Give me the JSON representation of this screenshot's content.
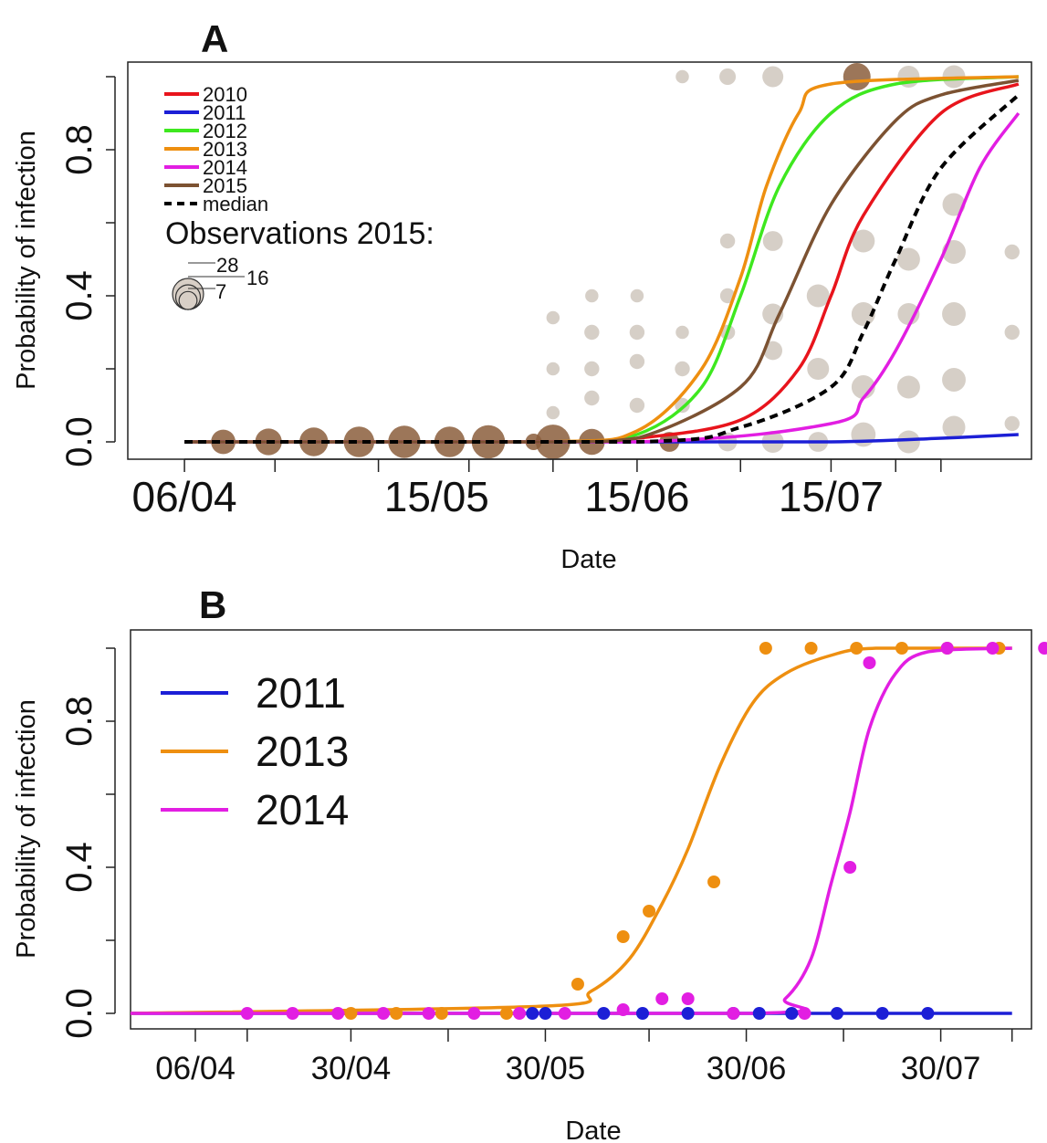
{
  "colors": {
    "2010": "#e8141c",
    "2011": "#1c1fd6",
    "2012": "#3ee81f",
    "2013": "#ee8f10",
    "2014": "#e21ee2",
    "2015": "#7c5232",
    "median": "#000000",
    "obs_other": "#c8bfb4",
    "obs_2015": "#8b5e3c"
  },
  "chart_data": [
    {
      "panel": "A",
      "type": "line",
      "xlabel": "Date",
      "ylabel": "Probability of infection",
      "x_unit": "date (day/month)",
      "xlim": [
        "24/03",
        "15/08"
      ],
      "ylim": [
        0,
        1
      ],
      "x_tick_labels": [
        "06/04",
        "15/05",
        "15/06",
        "15/07"
      ],
      "x_ticks_all": [
        "06/04",
        "20/04",
        "06/05",
        "20/05",
        "02/06",
        "15/06",
        "01/07",
        "15/07",
        "25/07",
        "01/08"
      ],
      "y_tick_labels": [
        "0.0",
        "0.4",
        "0.8"
      ],
      "legend_position": "top-left",
      "series": [
        {
          "name": "2010",
          "color_key": "2010",
          "x": [
            "06/04",
            "01/06",
            "15/06",
            "01/07",
            "10/07",
            "15/07",
            "20/07",
            "01/08",
            "13/08"
          ],
          "y": [
            0.0,
            0.0,
            0.01,
            0.06,
            0.2,
            0.4,
            0.62,
            0.9,
            0.98
          ]
        },
        {
          "name": "2011",
          "color_key": "2011",
          "x": [
            "06/04",
            "15/06",
            "15/07",
            "01/08",
            "13/08"
          ],
          "y": [
            0.0,
            0.0,
            0.0,
            0.01,
            0.02
          ]
        },
        {
          "name": "2012",
          "color_key": "2012",
          "x": [
            "06/04",
            "01/06",
            "15/06",
            "25/06",
            "01/07",
            "07/07",
            "15/07",
            "25/07",
            "13/08"
          ],
          "y": [
            0.0,
            0.0,
            0.02,
            0.15,
            0.4,
            0.7,
            0.9,
            0.98,
            1.0
          ]
        },
        {
          "name": "2013",
          "color_key": "2013",
          "x": [
            "06/04",
            "01/06",
            "15/06",
            "25/06",
            "01/07",
            "05/07",
            "10/07",
            "15/07",
            "13/08"
          ],
          "y": [
            0.0,
            0.0,
            0.03,
            0.2,
            0.45,
            0.7,
            0.9,
            0.98,
            1.0
          ]
        },
        {
          "name": "2014",
          "color_key": "2014",
          "x": [
            "06/04",
            "15/06",
            "15/07",
            "20/07",
            "25/07",
            "01/08",
            "07/08",
            "13/08"
          ],
          "y": [
            0.0,
            0.0,
            0.05,
            0.12,
            0.25,
            0.5,
            0.75,
            0.9
          ]
        },
        {
          "name": "2015",
          "color_key": "2015",
          "x": [
            "06/04",
            "01/06",
            "15/06",
            "01/07",
            "07/07",
            "15/07",
            "25/07",
            "01/08",
            "13/08"
          ],
          "y": [
            0.0,
            0.0,
            0.01,
            0.15,
            0.35,
            0.65,
            0.88,
            0.95,
            0.99
          ]
        },
        {
          "name": "median",
          "color_key": "median",
          "dashed": true,
          "x": [
            "06/04",
            "15/06",
            "01/07",
            "15/07",
            "20/07",
            "25/07",
            "01/08",
            "13/08"
          ],
          "y": [
            0.0,
            0.0,
            0.04,
            0.15,
            0.3,
            0.5,
            0.75,
            0.95
          ]
        }
      ],
      "legend_labels": [
        "2010",
        "2011",
        "2012",
        "2013",
        "2014",
        "2015",
        "median"
      ],
      "observations_title": "Observations 2015:",
      "bubble_scale_labels": [
        "28",
        "16",
        "7"
      ],
      "observations_2015": [
        {
          "x": "12/04",
          "y": 0.0,
          "n": 12
        },
        {
          "x": "19/04",
          "y": 0.0,
          "n": 15
        },
        {
          "x": "26/04",
          "y": 0.0,
          "n": 18
        },
        {
          "x": "03/05",
          "y": 0.0,
          "n": 21
        },
        {
          "x": "10/05",
          "y": 0.0,
          "n": 24
        },
        {
          "x": "17/05",
          "y": 0.0,
          "n": 21
        },
        {
          "x": "23/05",
          "y": 0.0,
          "n": 26
        },
        {
          "x": "30/05",
          "y": 0.0,
          "n": 4
        },
        {
          "x": "02/06",
          "y": 0.0,
          "n": 28
        },
        {
          "x": "08/06",
          "y": 0.0,
          "n": 14
        },
        {
          "x": "20/06",
          "y": 0.0,
          "n": 7
        },
        {
          "x": "19/07",
          "y": 1.0,
          "n": 16
        }
      ],
      "observations_other": [
        {
          "x": "02/06",
          "y": 0.34,
          "n": 2
        },
        {
          "x": "02/06",
          "y": 0.2,
          "n": 2
        },
        {
          "x": "02/06",
          "y": 0.08,
          "n": 2
        },
        {
          "x": "08/06",
          "y": 0.4,
          "n": 2
        },
        {
          "x": "08/06",
          "y": 0.3,
          "n": 3
        },
        {
          "x": "08/06",
          "y": 0.2,
          "n": 3
        },
        {
          "x": "08/06",
          "y": 0.12,
          "n": 3
        },
        {
          "x": "15/06",
          "y": 0.4,
          "n": 2
        },
        {
          "x": "15/06",
          "y": 0.3,
          "n": 3
        },
        {
          "x": "15/06",
          "y": 0.22,
          "n": 3
        },
        {
          "x": "15/06",
          "y": 0.1,
          "n": 3
        },
        {
          "x": "22/06",
          "y": 1.0,
          "n": 2
        },
        {
          "x": "22/06",
          "y": 0.3,
          "n": 2
        },
        {
          "x": "22/06",
          "y": 0.2,
          "n": 3
        },
        {
          "x": "22/06",
          "y": 0.1,
          "n": 3
        },
        {
          "x": "29/06",
          "y": 1.0,
          "n": 4
        },
        {
          "x": "29/06",
          "y": 0.55,
          "n": 3
        },
        {
          "x": "29/06",
          "y": 0.4,
          "n": 3
        },
        {
          "x": "29/06",
          "y": 0.3,
          "n": 3
        },
        {
          "x": "29/06",
          "y": 0.0,
          "n": 6
        },
        {
          "x": "06/07",
          "y": 1.0,
          "n": 8
        },
        {
          "x": "06/07",
          "y": 0.55,
          "n": 7
        },
        {
          "x": "06/07",
          "y": 0.35,
          "n": 8
        },
        {
          "x": "06/07",
          "y": 0.25,
          "n": 6
        },
        {
          "x": "06/07",
          "y": 0.0,
          "n": 9
        },
        {
          "x": "13/07",
          "y": 0.4,
          "n": 10
        },
        {
          "x": "13/07",
          "y": 0.2,
          "n": 9
        },
        {
          "x": "13/07",
          "y": 0.0,
          "n": 7
        },
        {
          "x": "20/07",
          "y": 0.55,
          "n": 10
        },
        {
          "x": "20/07",
          "y": 0.35,
          "n": 11
        },
        {
          "x": "20/07",
          "y": 0.15,
          "n": 11
        },
        {
          "x": "20/07",
          "y": 0.02,
          "n": 12
        },
        {
          "x": "27/07",
          "y": 1.0,
          "n": 9
        },
        {
          "x": "27/07",
          "y": 0.5,
          "n": 10
        },
        {
          "x": "27/07",
          "y": 0.35,
          "n": 9
        },
        {
          "x": "27/07",
          "y": 0.15,
          "n": 10
        },
        {
          "x": "27/07",
          "y": 0.0,
          "n": 10
        },
        {
          "x": "03/08",
          "y": 1.0,
          "n": 10
        },
        {
          "x": "03/08",
          "y": 0.65,
          "n": 10
        },
        {
          "x": "03/08",
          "y": 0.52,
          "n": 11
        },
        {
          "x": "03/08",
          "y": 0.35,
          "n": 11
        },
        {
          "x": "03/08",
          "y": 0.17,
          "n": 11
        },
        {
          "x": "03/08",
          "y": 0.04,
          "n": 10
        },
        {
          "x": "12/08",
          "y": 0.52,
          "n": 3
        },
        {
          "x": "12/08",
          "y": 0.3,
          "n": 3
        },
        {
          "x": "12/08",
          "y": 0.05,
          "n": 3
        }
      ]
    },
    {
      "panel": "B",
      "type": "line",
      "xlabel": "Date",
      "ylabel": "Probability of infection",
      "x_unit": "date (day/month)",
      "xlim": [
        "27/03",
        "13/08"
      ],
      "ylim": [
        0,
        1
      ],
      "x_tick_labels": [
        "06/04",
        "30/04",
        "30/05",
        "30/06",
        "30/07"
      ],
      "x_ticks_all": [
        "06/04",
        "14/04",
        "30/04",
        "15/05",
        "30/05",
        "15/06",
        "30/06",
        "15/07",
        "30/07",
        "10/08"
      ],
      "y_tick_labels": [
        "0.0",
        "0.4",
        "0.8"
      ],
      "legend_position": "top-left",
      "series": [
        {
          "name": "2011",
          "color_key": "2011",
          "x": [
            "27/03",
            "10/08"
          ],
          "y": [
            0.0,
            0.0
          ]
        },
        {
          "name": "2013",
          "color_key": "2013",
          "x": [
            "27/03",
            "30/05",
            "06/06",
            "12/06",
            "17/06",
            "21/06",
            "26/06",
            "01/07",
            "06/07",
            "13/07",
            "20/07",
            "10/08"
          ],
          "y": [
            0.0,
            0.02,
            0.06,
            0.15,
            0.3,
            0.45,
            0.68,
            0.85,
            0.93,
            0.98,
            1.0,
            1.0
          ]
        },
        {
          "name": "2014",
          "color_key": "2014",
          "x": [
            "27/03",
            "01/07",
            "06/07",
            "10/07",
            "13/07",
            "16/07",
            "19/07",
            "23/07",
            "28/07",
            "10/08"
          ],
          "y": [
            0.0,
            0.0,
            0.04,
            0.15,
            0.35,
            0.55,
            0.78,
            0.93,
            0.99,
            1.0
          ]
        }
      ],
      "points": [
        {
          "series": "2011",
          "x": [
            "28/05",
            "30/05",
            "08/06",
            "14/06",
            "21/06",
            "28/06",
            "02/07",
            "07/07",
            "14/07",
            "21/07",
            "28/07"
          ],
          "y": [
            0,
            0,
            0,
            0,
            0,
            0,
            0,
            0,
            0,
            0,
            0
          ]
        },
        {
          "series": "2013",
          "x": [
            "30/04",
            "07/05",
            "14/05",
            "24/05",
            "04/06",
            "11/06",
            "15/06",
            "25/06",
            "03/07",
            "10/07",
            "17/07",
            "24/07",
            "31/07",
            "08/08"
          ],
          "y": [
            0.0,
            0.0,
            0.0,
            0.0,
            0.08,
            0.21,
            0.28,
            0.36,
            1.0,
            1.0,
            1.0,
            1.0,
            1.0,
            1.0
          ]
        },
        {
          "series": "2014",
          "x": [
            "14/04",
            "21/04",
            "28/04",
            "05/05",
            "12/05",
            "19/05",
            "26/05",
            "02/06",
            "11/06",
            "17/06",
            "21/06",
            "28/06",
            "09/07",
            "16/07",
            "19/07",
            "31/07",
            "07/08",
            "15/08"
          ],
          "y": [
            0.0,
            0.0,
            0.0,
            0.0,
            0.0,
            0.0,
            0.0,
            0.0,
            0.01,
            0.04,
            0.04,
            0.0,
            0.0,
            0.4,
            0.96,
            1.0,
            1.0,
            1.0
          ]
        }
      ],
      "legend_labels": [
        "2011",
        "2013",
        "2014"
      ]
    }
  ]
}
